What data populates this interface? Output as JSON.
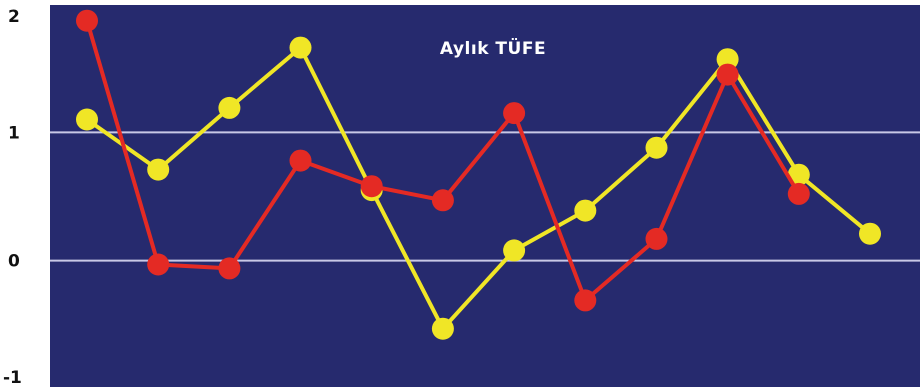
{
  "chart_data": {
    "type": "line",
    "title": "Aylık TÜFE",
    "xlabel": "",
    "ylabel": "",
    "ylim": [
      -1,
      2
    ],
    "y_ticks": [
      "2",
      "1",
      "0",
      "-1"
    ],
    "grid": true,
    "background_color": "#262a6e",
    "gridline_color": "#c8c8e6",
    "x": [
      1,
      2,
      3,
      4,
      5,
      6,
      7,
      8,
      9,
      10,
      11,
      12,
      13,
      14
    ],
    "series": [
      {
        "color": "#e42a24",
        "values": [
          1.87,
          -0.03,
          -0.06,
          0.78,
          0.58,
          0.47,
          1.15,
          -0.31,
          0.17,
          1.45,
          0.52,
          null,
          null,
          null
        ]
      },
      {
        "color": "#f0e626",
        "values": [
          1.1,
          0.71,
          1.19,
          1.66,
          0.55,
          -0.53,
          0.08,
          0.39,
          0.88,
          1.57,
          0.67,
          0.21,
          null,
          null
        ]
      }
    ]
  }
}
